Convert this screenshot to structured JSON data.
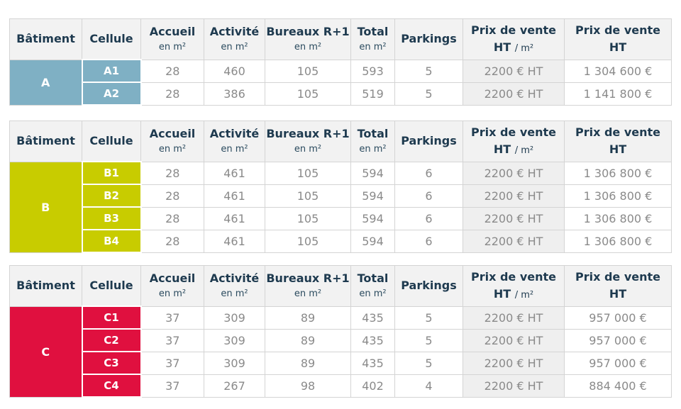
{
  "headers": {
    "batiment": "Bâtiment",
    "cellule": "Cellule",
    "accueil": "Accueil",
    "activite": "Activité",
    "bureaux": "Bureaux R+1",
    "total": "Total",
    "unit": "en m²",
    "parkings": "Parkings",
    "prix_m2": "Prix de vente",
    "prix_m2_sub_ht": "HT",
    "prix_m2_sub_unit": "/ m²",
    "prix_ht": "Prix de vente",
    "prix_ht_sub": "HT"
  },
  "buildings": [
    {
      "name": "A",
      "color": "#7fb0c4",
      "rows": [
        {
          "cellule": "A1",
          "accueil": "28",
          "activite": "460",
          "bureaux": "105",
          "total": "593",
          "parkings": "5",
          "prix_m2": "2200 € HT",
          "prix_ht": "1 304 600 €"
        },
        {
          "cellule": "A2",
          "accueil": "28",
          "activite": "386",
          "bureaux": "105",
          "total": "519",
          "parkings": "5",
          "prix_m2": "2200 € HT",
          "prix_ht": "1 141 800 €"
        }
      ]
    },
    {
      "name": "B",
      "color": "#c8cc00",
      "rows": [
        {
          "cellule": "B1",
          "accueil": "28",
          "activite": "461",
          "bureaux": "105",
          "total": "594",
          "parkings": "6",
          "prix_m2": "2200 € HT",
          "prix_ht": "1 306 800 €"
        },
        {
          "cellule": "B2",
          "accueil": "28",
          "activite": "461",
          "bureaux": "105",
          "total": "594",
          "parkings": "6",
          "prix_m2": "2200 € HT",
          "prix_ht": "1 306 800 €"
        },
        {
          "cellule": "B3",
          "accueil": "28",
          "activite": "461",
          "bureaux": "105",
          "total": "594",
          "parkings": "6",
          "prix_m2": "2200 € HT",
          "prix_ht": "1 306 800 €"
        },
        {
          "cellule": "B4",
          "accueil": "28",
          "activite": "461",
          "bureaux": "105",
          "total": "594",
          "parkings": "6",
          "prix_m2": "2200 € HT",
          "prix_ht": "1 306 800 €"
        }
      ]
    },
    {
      "name": "C",
      "color": "#e0103f",
      "rows": [
        {
          "cellule": "C1",
          "accueil": "37",
          "activite": "309",
          "bureaux": "89",
          "total": "435",
          "parkings": "5",
          "prix_m2": "2200 € HT",
          "prix_ht": "957 000 €"
        },
        {
          "cellule": "C2",
          "accueil": "37",
          "activite": "309",
          "bureaux": "89",
          "total": "435",
          "parkings": "5",
          "prix_m2": "2200 € HT",
          "prix_ht": "957 000 €"
        },
        {
          "cellule": "C3",
          "accueil": "37",
          "activite": "309",
          "bureaux": "89",
          "total": "435",
          "parkings": "5",
          "prix_m2": "2200 € HT",
          "prix_ht": "957 000 €"
        },
        {
          "cellule": "C4",
          "accueil": "37",
          "activite": "267",
          "bureaux": "98",
          "total": "402",
          "parkings": "4",
          "prix_m2": "2200 € HT",
          "prix_ht": "884 400 €"
        }
      ]
    }
  ]
}
